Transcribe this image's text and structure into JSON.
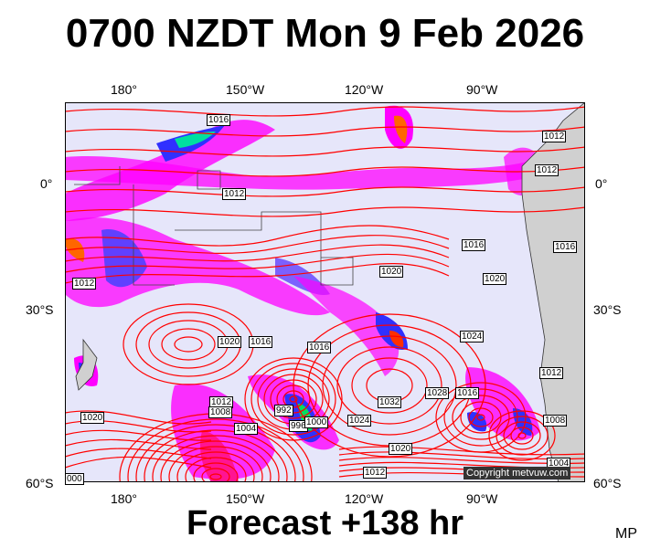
{
  "title": "0700 NZDT Mon 9 Feb 2026",
  "footer": "Forecast +138 hr",
  "initials": "MP",
  "copyright": "Copyright metvuw.com",
  "longitude_labels": [
    "180°",
    "150°W",
    "120°W",
    "90°W"
  ],
  "latitude_labels": [
    "0°",
    "30°S",
    "60°S"
  ],
  "isobar_labels": [
    "1016",
    "1012",
    "1012",
    "1012",
    "1016",
    "1016",
    "1012",
    "1020",
    "1020",
    "1024",
    "1020",
    "1016",
    "1016",
    "1012",
    "1008",
    "1004",
    "992",
    "996",
    "1000",
    "1024",
    "1032",
    "1028",
    "1016",
    "1012",
    "1008",
    "1020",
    "1020",
    "1012",
    "1004",
    "000"
  ],
  "colors": {
    "background": "#e6e6fa",
    "isobar": "#ff0000",
    "rain_light": "#ff00ff",
    "rain_medium": "#8a2be2",
    "rain_heavy": "#0000ff"
  }
}
